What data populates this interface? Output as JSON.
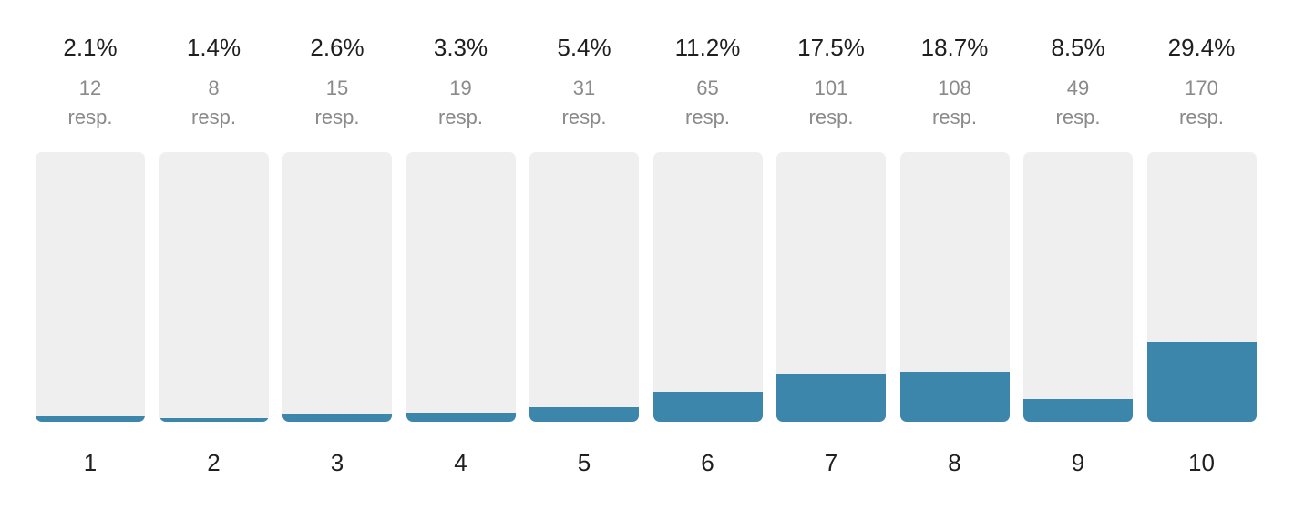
{
  "chart_data": {
    "type": "bar",
    "categories": [
      "1",
      "2",
      "3",
      "4",
      "5",
      "6",
      "7",
      "8",
      "9",
      "10"
    ],
    "percent_labels": [
      "2.1%",
      "1.4%",
      "2.6%",
      "3.3%",
      "5.4%",
      "11.2%",
      "17.5%",
      "18.7%",
      "8.5%",
      "29.4%"
    ],
    "values": [
      2.1,
      1.4,
      2.6,
      3.3,
      5.4,
      11.2,
      17.5,
      18.7,
      8.5,
      29.4
    ],
    "responses": [
      "12",
      "8",
      "15",
      "19",
      "31",
      "65",
      "101",
      "108",
      "49",
      "170"
    ],
    "response_unit": "resp.",
    "ylim": [
      0,
      100
    ],
    "bar_color": "#3c86ab",
    "track_color": "#efefef"
  }
}
